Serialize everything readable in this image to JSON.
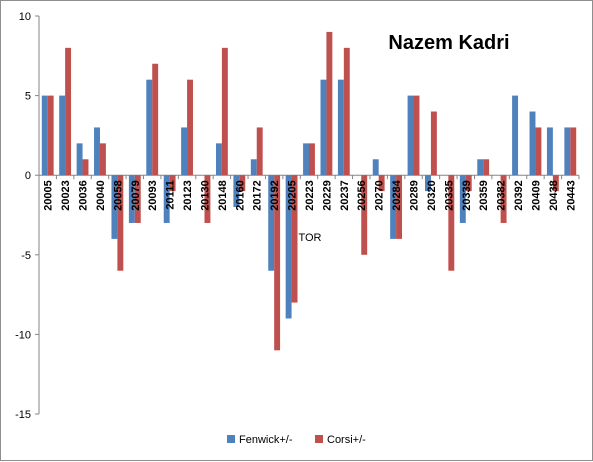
{
  "chart_data": {
    "type": "bar",
    "title": "Nazem Kadri",
    "xlabel": "TOR",
    "ylabel": "",
    "ylim": [
      -15,
      10
    ],
    "yticks": [
      10,
      5,
      0,
      -5,
      -10,
      -15
    ],
    "grid": false,
    "legend_position": "bottom",
    "categories": [
      "20005",
      "20023",
      "20036",
      "20040",
      "20058",
      "20079",
      "20093",
      "20111",
      "20123",
      "20130",
      "20148",
      "20160",
      "20172",
      "20192",
      "20205",
      "20223",
      "20229",
      "20237",
      "20256",
      "20270",
      "20284",
      "20289",
      "20320",
      "20335",
      "20339",
      "20359",
      "20382",
      "20392",
      "20409",
      "20438",
      "20443"
    ],
    "series": [
      {
        "name": "Fenwick+/-",
        "color": "#4f81bd",
        "values": [
          5,
          5,
          2,
          3,
          -4,
          -3,
          6,
          -3,
          3,
          0,
          2,
          -2,
          1,
          -6,
          -9,
          2,
          6,
          6,
          0,
          1,
          -4,
          5,
          -1,
          0,
          -3,
          1,
          0,
          5,
          4,
          3,
          3
        ]
      },
      {
        "name": "Corsi+/-",
        "color": "#c0504d",
        "values": [
          5,
          8,
          1,
          2,
          -6,
          -3,
          7,
          -1,
          6,
          -3,
          8,
          -1,
          3,
          -11,
          -8,
          2,
          9,
          8,
          -5,
          -1,
          -4,
          5,
          4,
          -6,
          -1,
          1,
          -3,
          0,
          3,
          -1,
          3
        ]
      }
    ]
  }
}
